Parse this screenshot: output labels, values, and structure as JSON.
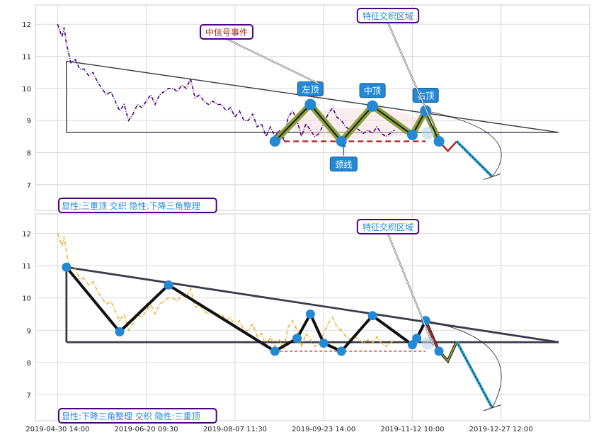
{
  "chart_data": [
    {
      "type": "line",
      "panel": "top",
      "ylim": [
        6.2,
        12.6
      ],
      "yticks": [
        7,
        8,
        9,
        10,
        11,
        12
      ],
      "grid": true,
      "price_color": "#4b0082",
      "price_series": [
        [
          0,
          12.0
        ],
        [
          0.5,
          11.8
        ],
        [
          1,
          11.6
        ],
        [
          1.5,
          11.9
        ],
        [
          2,
          11.4
        ],
        [
          3,
          10.8
        ],
        [
          4,
          10.9
        ],
        [
          5,
          10.6
        ],
        [
          6,
          10.6
        ],
        [
          7,
          10.4
        ],
        [
          8,
          10.5
        ],
        [
          9,
          10.2
        ],
        [
          10,
          10.0
        ],
        [
          11,
          9.8
        ],
        [
          12,
          9.9
        ],
        [
          13,
          9.6
        ],
        [
          14,
          9.3
        ],
        [
          15,
          9.5
        ],
        [
          16,
          9.0
        ],
        [
          17,
          9.2
        ],
        [
          18,
          9.5
        ],
        [
          19,
          9.4
        ],
        [
          20,
          9.6
        ],
        [
          21,
          9.8
        ],
        [
          22,
          9.5
        ],
        [
          23,
          9.8
        ],
        [
          24,
          9.9
        ],
        [
          25,
          10.0
        ],
        [
          26,
          10.0
        ],
        [
          27,
          9.9
        ],
        [
          28,
          10.1
        ],
        [
          29,
          10.0
        ],
        [
          30,
          10.3
        ],
        [
          31,
          9.7
        ],
        [
          32,
          9.8
        ],
        [
          33,
          9.6
        ],
        [
          34,
          9.5
        ],
        [
          35,
          9.6
        ],
        [
          36,
          9.5
        ],
        [
          37,
          9.5
        ],
        [
          38,
          9.3
        ],
        [
          39,
          9.4
        ],
        [
          40,
          9.1
        ],
        [
          41,
          9.3
        ],
        [
          42,
          9.0
        ],
        [
          43,
          9.0
        ],
        [
          44,
          9.2
        ],
        [
          45,
          8.8
        ],
        [
          46,
          8.9
        ],
        [
          47,
          8.5
        ],
        [
          48,
          8.8
        ],
        [
          49,
          8.5
        ],
        [
          50,
          8.7
        ],
        [
          51,
          8.4
        ],
        [
          52,
          9.1
        ],
        [
          53,
          9.3
        ],
        [
          54,
          9.0
        ],
        [
          55,
          8.5
        ],
        [
          56,
          8.9
        ],
        [
          57,
          8.7
        ],
        [
          58,
          8.5
        ],
        [
          59,
          8.6
        ],
        [
          60,
          8.9
        ],
        [
          61,
          9.2
        ],
        [
          62,
          9.4
        ],
        [
          63,
          9.1
        ],
        [
          64,
          9.0
        ],
        [
          65,
          8.8
        ],
        [
          66,
          8.7
        ],
        [
          67,
          8.8
        ],
        [
          68,
          8.7
        ],
        [
          69,
          8.6
        ],
        [
          70,
          8.7
        ],
        [
          71,
          8.6
        ],
        [
          72,
          8.8
        ],
        [
          73,
          8.6
        ],
        [
          74,
          8.5
        ],
        [
          75,
          8.6
        ],
        [
          76,
          8.7
        ]
      ],
      "pattern_points": [
        [
          49,
          8.35
        ],
        [
          57,
          9.5
        ],
        [
          64,
          8.35
        ],
        [
          71,
          9.45
        ],
        [
          80,
          8.55
        ],
        [
          83,
          9.3
        ],
        [
          86,
          8.35
        ]
      ],
      "pattern_labels": [
        "",
        "左顶",
        "",
        "中顶",
        "",
        "右顶",
        ""
      ],
      "neckline": {
        "x": [
          49,
          83
        ],
        "y": 8.35,
        "color": "#b22222"
      },
      "forecast_red": [
        [
          86,
          8.35
        ],
        [
          88,
          8.05
        ],
        [
          90,
          8.35
        ]
      ],
      "forecast_blue": [
        [
          90,
          8.35
        ],
        [
          98,
          7.25
        ]
      ],
      "triangle": {
        "apex": [
          113,
          8.63
        ],
        "top_start": [
          2,
          10.85
        ],
        "bottom_y": 8.63
      },
      "neckline_label": "颈线",
      "annotations": [
        "中信号事件",
        "特征交织区域"
      ],
      "bottom_label": "显性:三重顶 交织 隐性:下降三角整理"
    },
    {
      "type": "line",
      "panel": "bottom",
      "ylim": [
        6.2,
        12.6
      ],
      "yticks": [
        7,
        8,
        9,
        10,
        11,
        12
      ],
      "grid": true,
      "price_color": "#e6b034",
      "price_series": [
        [
          0,
          12.0
        ],
        [
          0.5,
          11.8
        ],
        [
          1,
          11.6
        ],
        [
          1.5,
          11.9
        ],
        [
          2,
          11.4
        ],
        [
          3,
          10.8
        ],
        [
          4,
          10.9
        ],
        [
          5,
          10.6
        ],
        [
          6,
          10.6
        ],
        [
          7,
          10.4
        ],
        [
          8,
          10.5
        ],
        [
          9,
          10.2
        ],
        [
          10,
          10.0
        ],
        [
          11,
          9.8
        ],
        [
          12,
          9.9
        ],
        [
          13,
          9.6
        ],
        [
          14,
          9.3
        ],
        [
          15,
          9.5
        ],
        [
          16,
          9.0
        ],
        [
          17,
          9.2
        ],
        [
          18,
          9.5
        ],
        [
          19,
          9.4
        ],
        [
          20,
          9.6
        ],
        [
          21,
          9.8
        ],
        [
          22,
          9.5
        ],
        [
          23,
          9.8
        ],
        [
          24,
          9.9
        ],
        [
          25,
          10.0
        ],
        [
          26,
          10.0
        ],
        [
          27,
          9.9
        ],
        [
          28,
          10.1
        ],
        [
          29,
          10.0
        ],
        [
          30,
          10.3
        ],
        [
          31,
          9.7
        ],
        [
          32,
          9.8
        ],
        [
          33,
          9.6
        ],
        [
          34,
          9.5
        ],
        [
          35,
          9.6
        ],
        [
          36,
          9.5
        ],
        [
          37,
          9.5
        ],
        [
          38,
          9.3
        ],
        [
          39,
          9.4
        ],
        [
          40,
          9.1
        ],
        [
          41,
          9.3
        ],
        [
          42,
          9.0
        ],
        [
          43,
          9.0
        ],
        [
          44,
          9.2
        ],
        [
          45,
          8.8
        ],
        [
          46,
          8.9
        ],
        [
          47,
          8.5
        ],
        [
          48,
          8.8
        ],
        [
          49,
          8.5
        ],
        [
          50,
          8.7
        ],
        [
          51,
          8.4
        ],
        [
          52,
          9.1
        ],
        [
          53,
          9.3
        ],
        [
          54,
          9.0
        ],
        [
          55,
          8.5
        ],
        [
          56,
          8.9
        ],
        [
          57,
          8.7
        ],
        [
          58,
          8.5
        ],
        [
          59,
          8.6
        ],
        [
          60,
          8.9
        ],
        [
          61,
          9.2
        ],
        [
          62,
          9.4
        ],
        [
          63,
          9.1
        ],
        [
          64,
          9.0
        ],
        [
          65,
          8.8
        ],
        [
          66,
          8.7
        ],
        [
          67,
          8.8
        ],
        [
          68,
          8.7
        ],
        [
          69,
          8.6
        ],
        [
          70,
          8.7
        ],
        [
          71,
          8.6
        ],
        [
          72,
          8.8
        ],
        [
          73,
          8.6
        ],
        [
          74,
          8.5
        ],
        [
          75,
          8.6
        ],
        [
          76,
          8.7
        ]
      ],
      "pattern_points": [
        [
          2,
          10.95
        ],
        [
          14,
          8.95
        ],
        [
          25,
          10.4
        ],
        [
          49,
          8.35
        ],
        [
          54,
          8.75
        ],
        [
          57,
          9.5
        ],
        [
          60,
          8.6
        ],
        [
          64,
          8.35
        ],
        [
          71,
          9.45
        ],
        [
          80,
          8.55
        ],
        [
          81,
          8.75
        ],
        [
          83,
          9.3
        ],
        [
          86,
          8.35
        ]
      ],
      "neckline": {
        "x": [
          49,
          83
        ],
        "y": 8.35,
        "color": "#b22222"
      },
      "forecast_red": [
        [
          83,
          9.3
        ],
        [
          86,
          8.35
        ]
      ],
      "forecast_green": [
        [
          86,
          8.35
        ],
        [
          88,
          8.05
        ],
        [
          90,
          8.65
        ]
      ],
      "forecast_blue": [
        [
          90,
          8.65
        ],
        [
          98,
          6.6
        ]
      ],
      "triangle": {
        "apex": [
          113,
          8.63
        ],
        "top_start": [
          2,
          10.95
        ],
        "bottom_y": 8.63
      },
      "annotations": [
        "特征交织区域"
      ],
      "bottom_label": "显性:下降三角整理 交织 隐性:三重顶"
    }
  ],
  "x_ticks": [
    {
      "x": 0,
      "label": "2019-04-30 14:00"
    },
    {
      "x": 20,
      "label": "2019-06-20 09:30"
    },
    {
      "x": 40,
      "label": "2019-08-07 11:30"
    },
    {
      "x": 60,
      "label": "2019-09-23 14:00"
    },
    {
      "x": 80,
      "label": "2019-11-12 10:00"
    },
    {
      "x": 100,
      "label": "2019-12-27 12:00"
    }
  ],
  "xlim": [
    -5,
    120
  ],
  "colors": {
    "accent_blue": "#2389d6",
    "pattern_green": "#8aa13a",
    "triangle": "#3a3a4a",
    "annotation_border": "#4b0082"
  }
}
